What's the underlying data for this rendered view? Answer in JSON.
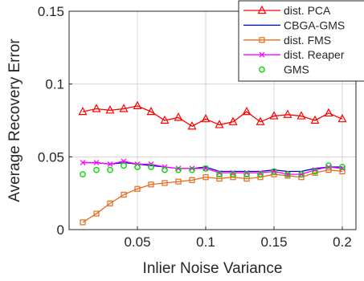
{
  "chart_data": {
    "type": "line",
    "xlabel": "Inlier Noise Variance",
    "ylabel": "Average Recovery Error",
    "xlim": [
      0,
      0.21
    ],
    "ylim": [
      0,
      0.15
    ],
    "x_ticks": [
      0.05,
      0.1,
      0.15,
      0.2
    ],
    "x_tick_labels": [
      "0.05",
      "0.1",
      "0.15",
      "0.2"
    ],
    "y_ticks": [
      0,
      0.05,
      0.1,
      0.15
    ],
    "y_tick_labels": [
      "0",
      "0.05",
      "0.1",
      "0.15"
    ],
    "grid": true,
    "legend_position": "top-right",
    "x": [
      0.01,
      0.02,
      0.03,
      0.04,
      0.05,
      0.06,
      0.07,
      0.08,
      0.09,
      0.1,
      0.11,
      0.12,
      0.13,
      0.14,
      0.15,
      0.16,
      0.17,
      0.18,
      0.19,
      0.2
    ],
    "series": [
      {
        "name": "dist. PCA",
        "color": "#ff0000",
        "marker": "triangle",
        "values": [
          0.081,
          0.083,
          0.082,
          0.083,
          0.085,
          0.081,
          0.075,
          0.077,
          0.071,
          0.076,
          0.072,
          0.074,
          0.081,
          0.074,
          0.078,
          0.079,
          0.078,
          0.075,
          0.08,
          0.076
        ]
      },
      {
        "name": "CBGA-GMS",
        "color": "#0000cc",
        "marker": "none",
        "values": [
          0.046,
          0.046,
          0.045,
          0.046,
          0.045,
          0.044,
          0.043,
          0.042,
          0.042,
          0.043,
          0.04,
          0.04,
          0.04,
          0.04,
          0.041,
          0.04,
          0.04,
          0.042,
          0.043,
          0.043
        ]
      },
      {
        "name": "dist. FMS",
        "color": "#e46c1b",
        "marker": "square",
        "values": [
          0.005,
          0.011,
          0.018,
          0.024,
          0.028,
          0.031,
          0.032,
          0.033,
          0.034,
          0.036,
          0.035,
          0.036,
          0.035,
          0.036,
          0.038,
          0.037,
          0.036,
          0.039,
          0.041,
          0.04
        ]
      },
      {
        "name": "dist. Reaper",
        "color": "#ff00ff",
        "marker": "x",
        "values": [
          0.046,
          0.046,
          0.045,
          0.047,
          0.045,
          0.045,
          0.043,
          0.042,
          0.042,
          0.042,
          0.039,
          0.039,
          0.039,
          0.039,
          0.04,
          0.038,
          0.038,
          0.041,
          0.043,
          0.042
        ]
      },
      {
        "name": "GMS",
        "color": "#00dd00",
        "marker": "circle",
        "values": [
          0.038,
          0.041,
          0.041,
          0.044,
          0.043,
          0.043,
          0.041,
          0.041,
          0.041,
          0.042,
          0.038,
          0.038,
          0.038,
          0.038,
          0.04,
          0.038,
          0.038,
          0.04,
          0.044,
          0.043
        ]
      }
    ]
  }
}
